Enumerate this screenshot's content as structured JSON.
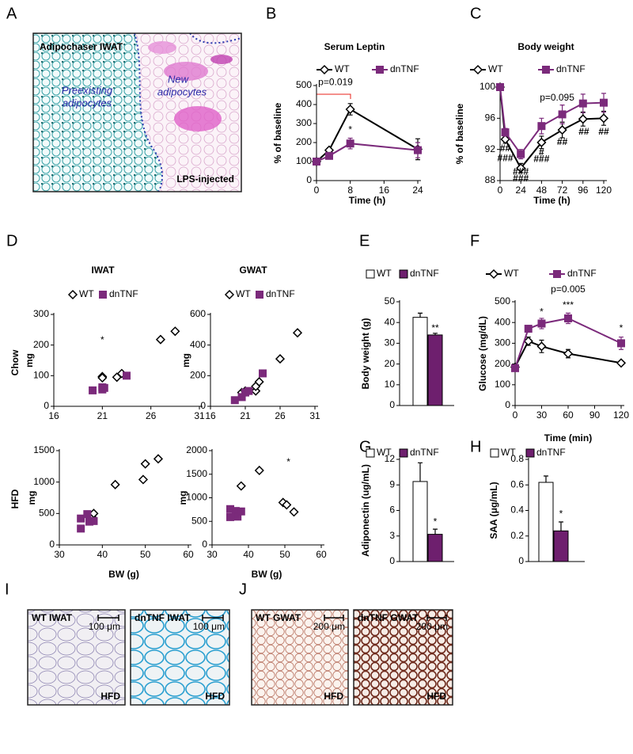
{
  "chart_data": [
    {
      "panel": "B",
      "type": "line",
      "title": "Serum Leptin",
      "x_label": "Time (h)",
      "y_label": "% of baseline",
      "xlim": [
        0,
        24
      ],
      "xticks": [
        0,
        8,
        16,
        24
      ],
      "ylim": [
        0,
        500
      ],
      "yticks": [
        0,
        100,
        200,
        300,
        400,
        500
      ],
      "series": [
        {
          "name": "WT",
          "color": "#000000",
          "marker": "diamond",
          "x": [
            0,
            3,
            8,
            24
          ],
          "values": [
            100,
            160,
            375,
            165
          ],
          "errors": [
            8,
            12,
            30,
            55
          ]
        },
        {
          "name": "dnTNF",
          "color": "#7b2a7b",
          "marker": "square",
          "x": [
            0,
            3,
            8,
            24
          ],
          "values": [
            100,
            130,
            195,
            160
          ],
          "errors": [
            8,
            10,
            28,
            40
          ]
        }
      ],
      "annotations": [
        {
          "text": "p=0.019",
          "color": "#e8201a",
          "x": 4.5,
          "y": 515
        },
        {
          "text": "*",
          "color": "#e8201a",
          "x": 8,
          "y": 265
        }
      ]
    },
    {
      "panel": "C",
      "type": "line",
      "title": "Body weight",
      "x_label": "Time (h)",
      "y_label": "% of baseline",
      "xlim": [
        0,
        120
      ],
      "xticks": [
        0,
        24,
        48,
        72,
        96,
        120
      ],
      "ylim": [
        88,
        100
      ],
      "yticks": [
        88,
        92,
        96,
        100
      ],
      "series": [
        {
          "name": "WT",
          "color": "#000000",
          "marker": "diamond",
          "x": [
            0,
            6,
            24,
            48,
            72,
            96,
            120
          ],
          "values": [
            100,
            93.3,
            89.6,
            92.9,
            94.5,
            95.9,
            96.0
          ],
          "errors": [
            0,
            0.5,
            0.6,
            0.8,
            1.0,
            0.9,
            0.9
          ]
        },
        {
          "name": "dnTNF",
          "color": "#7b2a7b",
          "marker": "square",
          "x": [
            0,
            6,
            24,
            48,
            72,
            96,
            120
          ],
          "values": [
            100,
            94.2,
            91.4,
            95,
            96.5,
            97.9,
            98
          ],
          "errors": [
            0,
            0.5,
            0.6,
            1.0,
            1.2,
            1.2,
            1.2
          ]
        }
      ],
      "annotations": [
        {
          "text": "p=0.095",
          "color": "#e8201a",
          "x": 66,
          "y": 98.6
        },
        {
          "text": "##",
          "color": "#7b2a7b",
          "x": 6,
          "y": 92.1
        },
        {
          "text": "###",
          "color": "#333333",
          "x": 6,
          "y": 90.8
        },
        {
          "text": "###",
          "color": "#7b2a7b",
          "x": 24,
          "y": 89.1
        },
        {
          "text": "###",
          "color": "#333333",
          "x": 24,
          "y": 88.2
        },
        {
          "text": "#",
          "color": "#7b2a7b",
          "x": 48,
          "y": 91.6
        },
        {
          "text": "###",
          "color": "#333333",
          "x": 48,
          "y": 90.7
        },
        {
          "text": "##",
          "color": "#333333",
          "x": 72,
          "y": 92.9
        },
        {
          "text": "##",
          "color": "#333333",
          "x": 97,
          "y": 94.2
        },
        {
          "text": "##",
          "color": "#333333",
          "x": 120,
          "y": 94.2
        }
      ]
    },
    {
      "panel": "D",
      "type": "scatter",
      "title": "IWAT",
      "row_label": "Chow",
      "y_label": "mg",
      "xlim": [
        16,
        31
      ],
      "xticks": [
        16,
        21,
        26,
        31
      ],
      "ylim": [
        0,
        300
      ],
      "yticks": [
        0,
        100,
        200,
        300
      ],
      "series": [
        {
          "name": "WT",
          "color": "#000000",
          "marker": "diamond",
          "x": [
            21,
            21,
            22.5,
            23,
            27,
            28.5
          ],
          "values": [
            97,
            93,
            95,
            107,
            218,
            245
          ]
        },
        {
          "name": "dnTNF",
          "color": "#7b2a7b",
          "marker": "square",
          "x": [
            20,
            21,
            21,
            21.2,
            23.5
          ],
          "values": [
            52,
            55,
            62,
            60,
            100
          ]
        }
      ],
      "annotations": [
        {
          "text": "*",
          "color": "#e8201a",
          "x": 21,
          "y": 215
        }
      ]
    },
    {
      "type": "scatter",
      "title": "GWAT",
      "y_label": "mg",
      "xlim": [
        16,
        31
      ],
      "xticks": [
        16,
        21,
        26,
        31
      ],
      "ylim": [
        0,
        600
      ],
      "yticks": [
        0,
        200,
        400,
        600
      ],
      "series": [
        {
          "name": "WT",
          "color": "#000000",
          "marker": "diamond",
          "x": [
            20.5,
            21,
            22.5,
            22.5,
            23,
            26,
            28.5
          ],
          "values": [
            90,
            100,
            100,
            130,
            160,
            310,
            480
          ]
        },
        {
          "name": "dnTNF",
          "color": "#7b2a7b",
          "marker": "square",
          "x": [
            19.5,
            20.5,
            21,
            21.5,
            23.5
          ],
          "values": [
            40,
            60,
            90,
            100,
            215
          ]
        }
      ]
    },
    {
      "type": "scatter",
      "row_label": "HFD",
      "y_label": "mg",
      "x_label": "BW (g)",
      "xlim": [
        30,
        60
      ],
      "xticks": [
        30,
        40,
        50,
        60
      ],
      "ylim": [
        0,
        1500
      ],
      "yticks": [
        0,
        500,
        1000,
        1500
      ],
      "series": [
        {
          "color": "#000000",
          "marker": "diamond",
          "x": [
            37.5,
            38,
            43,
            49.5,
            50,
            53
          ],
          "values": [
            450,
            500,
            960,
            1040,
            1290,
            1370
          ]
        },
        {
          "color": "#7b2a7b",
          "marker": "square",
          "x": [
            35,
            35,
            36.5,
            37,
            38
          ],
          "values": [
            260,
            420,
            490,
            370,
            380
          ]
        }
      ]
    },
    {
      "type": "scatter",
      "y_label": "mg",
      "x_label": "BW (g)",
      "xlim": [
        30,
        60
      ],
      "xticks": [
        30,
        40,
        50,
        60
      ],
      "ylim": [
        0,
        2000
      ],
      "yticks": [
        0,
        500,
        1000,
        1500,
        2000
      ],
      "series": [
        {
          "color": "#000000",
          "marker": "diamond",
          "x": [
            38,
            43,
            49.5,
            50.5,
            52.5
          ],
          "values": [
            1250,
            1580,
            900,
            850,
            700
          ]
        },
        {
          "color": "#7b2a7b",
          "marker": "square",
          "x": [
            35,
            35,
            36.5,
            37,
            38
          ],
          "values": [
            590,
            760,
            720,
            600,
            710
          ]
        }
      ],
      "annotations": [
        {
          "text": "*",
          "color": "#e8201a",
          "x": 51,
          "y": 1750
        }
      ]
    },
    {
      "panel": "E",
      "type": "bar",
      "y_label": "Body weight (g)",
      "ylim": [
        0,
        50
      ],
      "yticks": [
        0,
        10,
        20,
        30,
        40,
        50
      ],
      "series": [
        {
          "name": "WT",
          "color": "#ffffff",
          "values": [
            42.5
          ],
          "errors": [
            2
          ]
        },
        {
          "name": "dnTNF",
          "color": "#6e1f6e",
          "values": [
            34
          ],
          "errors": [
            0.8
          ]
        }
      ],
      "annotations": [
        {
          "text": "**",
          "color": "#e8201a",
          "x": 1,
          "y": 37
        }
      ]
    },
    {
      "panel": "F",
      "type": "line",
      "x_label": "Time (min)",
      "y_label": "Glucose (mg/dL)",
      "xlim": [
        0,
        120
      ],
      "xticks": [
        0,
        30,
        60,
        90,
        120
      ],
      "ylim": [
        0,
        500
      ],
      "yticks": [
        0,
        100,
        200,
        300,
        400,
        500
      ],
      "series": [
        {
          "name": "WT",
          "color": "#000000",
          "marker": "diamond",
          "x": [
            0,
            15,
            30,
            60,
            120
          ],
          "values": [
            185,
            310,
            285,
            250,
            205
          ],
          "errors": [
            15,
            20,
            30,
            20,
            10
          ]
        },
        {
          "name": "dnTNF",
          "color": "#7b2a7b",
          "marker": "square",
          "x": [
            0,
            15,
            30,
            60,
            120
          ],
          "values": [
            180,
            370,
            395,
            420,
            300
          ],
          "errors": [
            15,
            15,
            25,
            25,
            30
          ]
        }
      ],
      "annotations": [
        {
          "text": "p=0.005",
          "color": "#e8201a",
          "x": 60,
          "y": 557
        },
        {
          "text": "*",
          "color": "#e8201a",
          "x": 30,
          "y": 450
        },
        {
          "text": "***",
          "color": "#e8201a",
          "x": 60,
          "y": 481
        },
        {
          "text": "*",
          "color": "#e8201a",
          "x": 120,
          "y": 370
        }
      ]
    },
    {
      "panel": "G",
      "type": "bar",
      "y_label": "Adiponectin (ug/mL)",
      "ylim": [
        0,
        12
      ],
      "yticks": [
        0,
        3,
        6,
        9,
        12
      ],
      "series": [
        {
          "name": "WT",
          "color": "#ffffff",
          "values": [
            9.4
          ],
          "errors": [
            2.2
          ]
        },
        {
          "name": "dnTNF",
          "color": "#6e1f6e",
          "values": [
            3.2
          ],
          "errors": [
            0.6
          ]
        }
      ],
      "annotations": [
        {
          "text": "*",
          "color": "#e8201a",
          "x": 1,
          "y": 4.6
        }
      ]
    },
    {
      "panel": "H",
      "type": "bar",
      "y_label": "SAA (μg/mL)",
      "ylim": [
        0,
        0.8
      ],
      "yticks": [
        0,
        0.2,
        0.4,
        0.6,
        0.8
      ],
      "series": [
        {
          "name": "WT",
          "color": "#ffffff",
          "values": [
            0.62
          ],
          "errors": [
            0.05
          ]
        },
        {
          "name": "dnTNF",
          "color": "#6e1f6e",
          "values": [
            0.24
          ],
          "errors": [
            0.07
          ]
        }
      ],
      "annotations": [
        {
          "text": "*",
          "color": "#e8201a",
          "x": 1,
          "y": 0.37
        }
      ]
    }
  ],
  "images": [
    {
      "panel": "A",
      "title": "Adipochaser IWAT",
      "regions": [
        "Preexisting",
        "adipocytes",
        "New",
        "adipocytes"
      ],
      "note": "LPS-injected"
    },
    {
      "panel": "I",
      "title": "WT IWAT",
      "scale": "100 μm",
      "diet": "HFD"
    },
    {
      "title": "dnTNF IWAT",
      "scale": "100 μm",
      "diet": "HFD"
    },
    {
      "panel": "J",
      "title": "WT GWAT",
      "scale": "200 μm",
      "diet": "HFD"
    },
    {
      "title": "dnTNF GWAT",
      "scale": "200 μm",
      "diet": "HFD"
    }
  ]
}
